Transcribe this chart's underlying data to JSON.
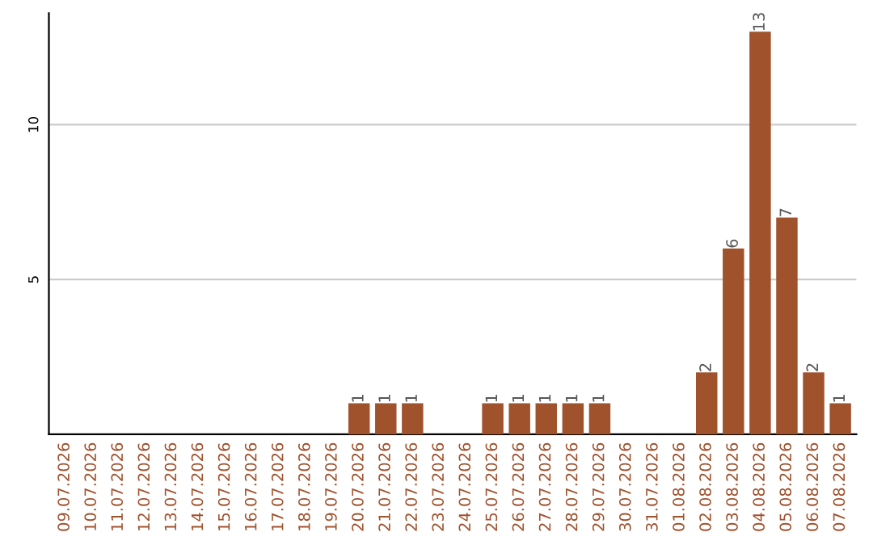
{
  "chart_data": {
    "type": "bar",
    "categories": [
      "09.07.2026",
      "10.07.2026",
      "11.07.2026",
      "12.07.2026",
      "13.07.2026",
      "14.07.2026",
      "15.07.2026",
      "16.07.2026",
      "17.07.2026",
      "18.07.2026",
      "19.07.2026",
      "20.07.2026",
      "21.07.2026",
      "22.07.2026",
      "23.07.2026",
      "24.07.2026",
      "25.07.2026",
      "26.07.2026",
      "27.07.2026",
      "28.07.2026",
      "29.07.2026",
      "30.07.2026",
      "31.07.2026",
      "01.08.2026",
      "02.08.2026",
      "03.08.2026",
      "04.08.2026",
      "05.08.2026",
      "06.08.2026",
      "07.08.2026"
    ],
    "values": [
      0,
      0,
      0,
      0,
      0,
      0,
      0,
      0,
      0,
      0,
      0,
      1,
      1,
      1,
      0,
      0,
      1,
      1,
      1,
      1,
      1,
      0,
      0,
      0,
      2,
      6,
      13,
      7,
      2,
      1
    ],
    "value_labels": [
      null,
      null,
      null,
      null,
      null,
      null,
      null,
      null,
      null,
      null,
      null,
      "1",
      "1",
      "1",
      null,
      null,
      "1",
      "1",
      "1",
      "1",
      "1",
      null,
      null,
      null,
      "2",
      "6",
      "13",
      "7",
      "2",
      "1"
    ],
    "color": "#a0522d",
    "ylim": [
      0,
      13.6
    ],
    "yticks": [
      5,
      10
    ],
    "grid": "y"
  }
}
